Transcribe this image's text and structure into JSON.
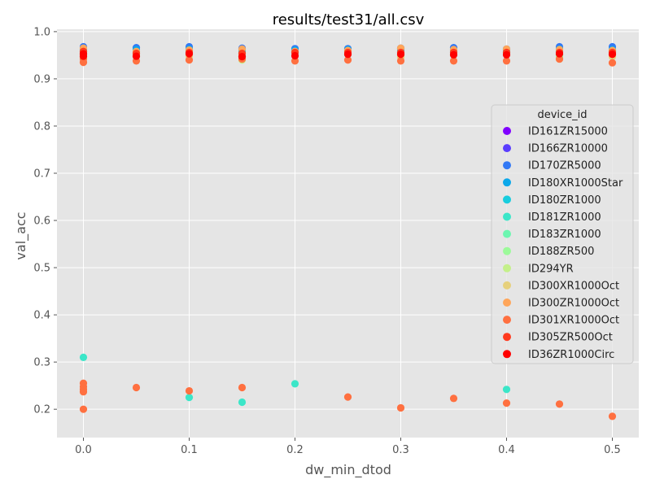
{
  "chart_data": {
    "type": "scatter",
    "title": "results/test31/all.csv",
    "xlabel": "dw_min_dtod",
    "ylabel": "val_acc",
    "xlim": [
      -0.025,
      0.525
    ],
    "ylim": [
      0.14,
      1.005
    ],
    "x_ticks": [
      0.0,
      0.1,
      0.2,
      0.3,
      0.4,
      0.5
    ],
    "x_tick_labels": [
      "0.0",
      "0.1",
      "0.2",
      "0.3",
      "0.4",
      "0.5"
    ],
    "y_ticks": [
      0.2,
      0.3,
      0.4,
      0.5,
      0.6,
      0.7,
      0.8,
      0.9,
      1.0
    ],
    "y_tick_labels": [
      "0.2",
      "0.3",
      "0.4",
      "0.5",
      "0.6",
      "0.7",
      "0.8",
      "0.9",
      "1.0"
    ],
    "grid": true,
    "legend": {
      "title": "device_id",
      "position": "right"
    },
    "series": [
      {
        "name": "ID161ZR15000",
        "color": "#8000ff",
        "points": []
      },
      {
        "name": "ID166ZR10000",
        "color": "#5a3dfe",
        "points": []
      },
      {
        "name": "ID170ZR5000",
        "color": "#3278f5",
        "points": [
          [
            0.0,
            0.968
          ],
          [
            0.05,
            0.966
          ],
          [
            0.1,
            0.968
          ],
          [
            0.15,
            0.965
          ],
          [
            0.2,
            0.964
          ],
          [
            0.25,
            0.964
          ],
          [
            0.3,
            0.965
          ],
          [
            0.35,
            0.966
          ],
          [
            0.4,
            0.963
          ],
          [
            0.45,
            0.968
          ],
          [
            0.5,
            0.968
          ]
        ]
      },
      {
        "name": "ID180XR1000Star",
        "color": "#0ca8ea",
        "points": [
          [
            0.0,
            0.962
          ],
          [
            0.05,
            0.962
          ],
          [
            0.1,
            0.963
          ],
          [
            0.15,
            0.961
          ],
          [
            0.2,
            0.961
          ],
          [
            0.25,
            0.962
          ],
          [
            0.3,
            0.962
          ],
          [
            0.35,
            0.961
          ],
          [
            0.4,
            0.962
          ],
          [
            0.45,
            0.963
          ],
          [
            0.5,
            0.962
          ]
        ]
      },
      {
        "name": "ID180ZR1000",
        "color": "#18cdde",
        "points": [
          [
            0.0,
            0.958
          ],
          [
            0.05,
            0.957
          ],
          [
            0.1,
            0.959
          ],
          [
            0.15,
            0.957
          ],
          [
            0.2,
            0.957
          ],
          [
            0.25,
            0.958
          ],
          [
            0.3,
            0.957
          ],
          [
            0.35,
            0.957
          ],
          [
            0.4,
            0.957
          ],
          [
            0.45,
            0.958
          ],
          [
            0.5,
            0.958
          ]
        ]
      },
      {
        "name": "ID181ZR1000",
        "color": "#3be6c8",
        "points": [
          [
            0.0,
            0.31
          ],
          [
            0.1,
            0.225
          ],
          [
            0.15,
            0.215
          ],
          [
            0.2,
            0.254
          ],
          [
            0.4,
            0.242
          ],
          [
            0.0,
            0.955
          ],
          [
            0.1,
            0.955
          ],
          [
            0.2,
            0.955
          ],
          [
            0.3,
            0.955
          ],
          [
            0.4,
            0.955
          ],
          [
            0.5,
            0.955
          ]
        ]
      },
      {
        "name": "ID183ZR1000",
        "color": "#6cf6b0",
        "points": [
          [
            0.0,
            0.952
          ],
          [
            0.15,
            0.95
          ],
          [
            0.25,
            0.952
          ],
          [
            0.35,
            0.951
          ],
          [
            0.45,
            0.951
          ]
        ]
      },
      {
        "name": "ID188ZR500",
        "color": "#9cfa9a",
        "points": [
          [
            0.05,
            0.95
          ],
          [
            0.15,
            0.946
          ],
          [
            0.3,
            0.95
          ],
          [
            0.45,
            0.947
          ]
        ]
      },
      {
        "name": "ID294YR",
        "color": "#c4f08a",
        "points": [
          [
            0.15,
            0.94
          ],
          [
            0.45,
            0.942
          ],
          [
            0.0,
            0.945
          ]
        ]
      },
      {
        "name": "ID300XR1000Oct",
        "color": "#e6d07c",
        "points": [
          [
            0.1,
            0.948
          ],
          [
            0.3,
            0.946
          ],
          [
            0.5,
            0.947
          ]
        ]
      },
      {
        "name": "ID300ZR1000Oct",
        "color": "#ffa65a",
        "points": [
          [
            0.0,
            0.965
          ],
          [
            0.05,
            0.958
          ],
          [
            0.1,
            0.961
          ],
          [
            0.15,
            0.963
          ],
          [
            0.2,
            0.958
          ],
          [
            0.25,
            0.96
          ],
          [
            0.3,
            0.965
          ],
          [
            0.35,
            0.962
          ],
          [
            0.4,
            0.963
          ],
          [
            0.45,
            0.962
          ],
          [
            0.5,
            0.96
          ]
        ]
      },
      {
        "name": "ID301XR1000Oct",
        "color": "#ff7040",
        "points": [
          [
            0.0,
            0.2
          ],
          [
            0.0,
            0.237
          ],
          [
            0.0,
            0.242
          ],
          [
            0.0,
            0.248
          ],
          [
            0.0,
            0.255
          ],
          [
            0.05,
            0.246
          ],
          [
            0.1,
            0.239
          ],
          [
            0.15,
            0.246
          ],
          [
            0.25,
            0.226
          ],
          [
            0.3,
            0.203
          ],
          [
            0.35,
            0.223
          ],
          [
            0.4,
            0.213
          ],
          [
            0.45,
            0.211
          ],
          [
            0.5,
            0.185
          ],
          [
            0.0,
            0.935
          ],
          [
            0.0,
            0.942
          ],
          [
            0.05,
            0.938
          ],
          [
            0.1,
            0.94
          ],
          [
            0.15,
            0.942
          ],
          [
            0.2,
            0.938
          ],
          [
            0.25,
            0.94
          ],
          [
            0.3,
            0.938
          ],
          [
            0.35,
            0.938
          ],
          [
            0.4,
            0.938
          ],
          [
            0.45,
            0.942
          ],
          [
            0.5,
            0.934
          ]
        ]
      },
      {
        "name": "ID305ZR500Oct",
        "color": "#ff3a1e",
        "points": [
          [
            0.0,
            0.958
          ],
          [
            0.05,
            0.954
          ],
          [
            0.1,
            0.956
          ],
          [
            0.15,
            0.954
          ],
          [
            0.2,
            0.956
          ],
          [
            0.25,
            0.956
          ],
          [
            0.3,
            0.956
          ],
          [
            0.35,
            0.956
          ],
          [
            0.4,
            0.956
          ],
          [
            0.45,
            0.956
          ],
          [
            0.5,
            0.956
          ]
        ]
      },
      {
        "name": "ID36ZR1000Circ",
        "color": "#ff0000",
        "points": [
          [
            0.0,
            0.953
          ],
          [
            0.0,
            0.948
          ],
          [
            0.05,
            0.948
          ],
          [
            0.1,
            0.953
          ],
          [
            0.15,
            0.947
          ],
          [
            0.2,
            0.949
          ],
          [
            0.25,
            0.952
          ],
          [
            0.3,
            0.952
          ],
          [
            0.35,
            0.951
          ],
          [
            0.4,
            0.951
          ],
          [
            0.45,
            0.953
          ],
          [
            0.5,
            0.952
          ]
        ]
      }
    ]
  }
}
